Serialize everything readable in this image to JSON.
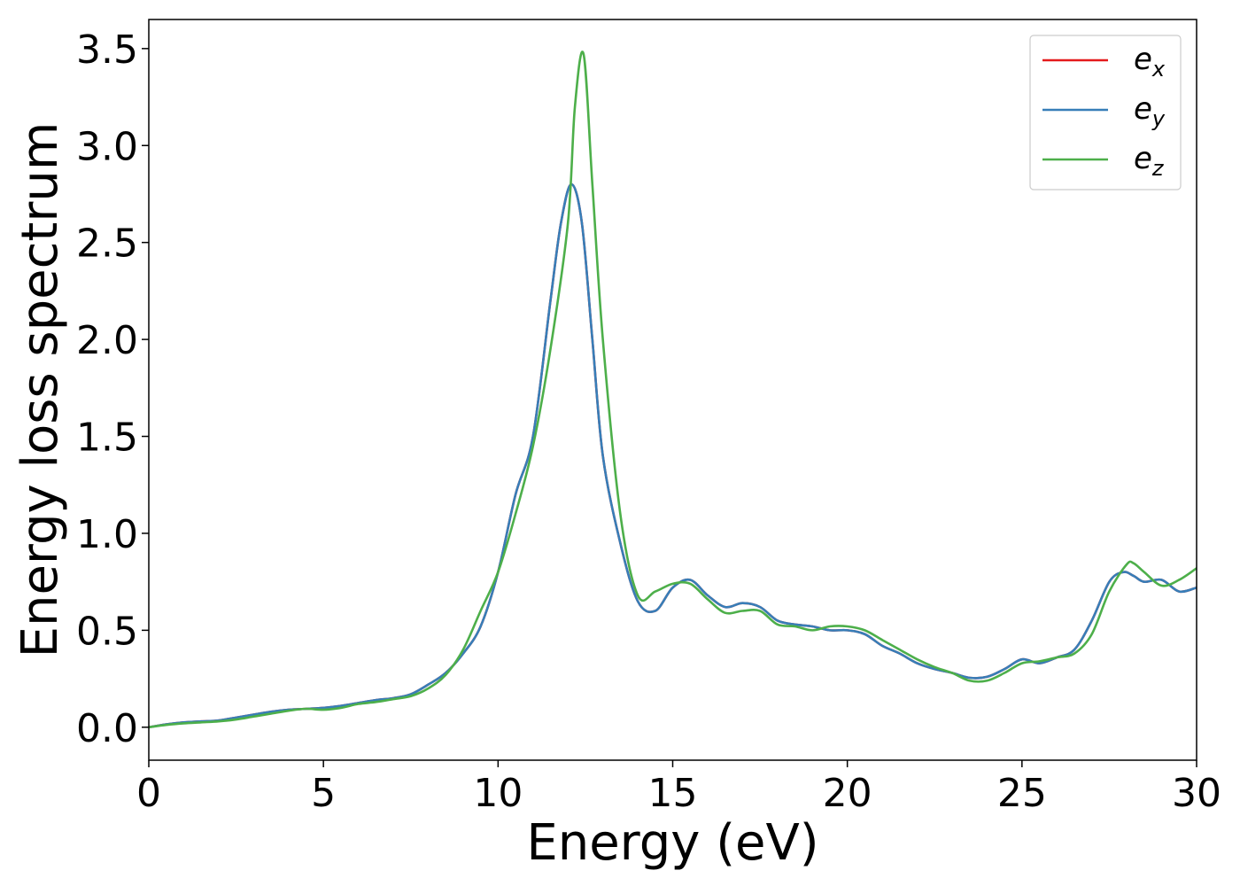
{
  "chart_data": {
    "type": "line",
    "title": "",
    "xlabel": "Energy (eV)",
    "ylabel": "Energy loss spectrum",
    "xlim": [
      0,
      30
    ],
    "ylim": [
      -0.17,
      3.65
    ],
    "xticks": [
      0,
      5,
      10,
      15,
      20,
      25,
      30
    ],
    "xtick_labels": [
      "0",
      "5",
      "10",
      "15",
      "20",
      "25",
      "30"
    ],
    "yticks": [
      0.0,
      0.5,
      1.0,
      1.5,
      2.0,
      2.5,
      3.0,
      3.5
    ],
    "ytick_labels": [
      "0.0",
      "0.5",
      "1.0",
      "1.5",
      "2.0",
      "2.5",
      "3.0",
      "3.5"
    ],
    "grid": false,
    "legend_position": "top-right",
    "series": [
      {
        "name": "e_x",
        "label_base": "e",
        "label_sub": "x",
        "color": "#e41a1c",
        "x": [
          0,
          0.5,
          1,
          1.5,
          2,
          2.5,
          3,
          3.5,
          4,
          4.5,
          5,
          5.5,
          6,
          6.5,
          7,
          7.5,
          8,
          8.5,
          9,
          9.5,
          10,
          10.5,
          11,
          11.5,
          11.8,
          12.1,
          12.4,
          12.7,
          13,
          13.5,
          14,
          14.5,
          15,
          15.5,
          16,
          16.5,
          17,
          17.5,
          18,
          18.5,
          19,
          19.5,
          20,
          20.5,
          21,
          21.5,
          22,
          22.5,
          23,
          23.5,
          24,
          24.5,
          25,
          25.5,
          26,
          26.5,
          27,
          27.5,
          27.9,
          28.2,
          28.5,
          29,
          29.5,
          30
        ],
        "y": [
          0.0,
          0.015,
          0.025,
          0.03,
          0.035,
          0.05,
          0.065,
          0.08,
          0.09,
          0.095,
          0.1,
          0.11,
          0.125,
          0.14,
          0.15,
          0.17,
          0.22,
          0.28,
          0.38,
          0.52,
          0.8,
          1.2,
          1.5,
          2.2,
          2.6,
          2.8,
          2.6,
          2.0,
          1.4,
          0.95,
          0.65,
          0.6,
          0.72,
          0.76,
          0.68,
          0.62,
          0.64,
          0.62,
          0.55,
          0.53,
          0.52,
          0.5,
          0.5,
          0.48,
          0.42,
          0.38,
          0.33,
          0.3,
          0.28,
          0.255,
          0.26,
          0.3,
          0.35,
          0.33,
          0.36,
          0.4,
          0.55,
          0.75,
          0.8,
          0.78,
          0.75,
          0.76,
          0.7,
          0.72
        ]
      },
      {
        "name": "e_y",
        "label_base": "e",
        "label_sub": "y",
        "color": "#377eb8",
        "x": [
          0,
          0.5,
          1,
          1.5,
          2,
          2.5,
          3,
          3.5,
          4,
          4.5,
          5,
          5.5,
          6,
          6.5,
          7,
          7.5,
          8,
          8.5,
          9,
          9.5,
          10,
          10.5,
          11,
          11.5,
          11.8,
          12.1,
          12.4,
          12.7,
          13,
          13.5,
          14,
          14.5,
          15,
          15.5,
          16,
          16.5,
          17,
          17.5,
          18,
          18.5,
          19,
          19.5,
          20,
          20.5,
          21,
          21.5,
          22,
          22.5,
          23,
          23.5,
          24,
          24.5,
          25,
          25.5,
          26,
          26.5,
          27,
          27.5,
          27.9,
          28.2,
          28.5,
          29,
          29.5,
          30
        ],
        "y": [
          0.0,
          0.015,
          0.025,
          0.03,
          0.035,
          0.05,
          0.065,
          0.08,
          0.09,
          0.095,
          0.1,
          0.11,
          0.125,
          0.14,
          0.15,
          0.17,
          0.22,
          0.28,
          0.38,
          0.52,
          0.8,
          1.2,
          1.5,
          2.2,
          2.6,
          2.8,
          2.6,
          2.0,
          1.4,
          0.95,
          0.65,
          0.6,
          0.72,
          0.76,
          0.68,
          0.62,
          0.64,
          0.62,
          0.55,
          0.53,
          0.52,
          0.5,
          0.5,
          0.48,
          0.42,
          0.38,
          0.33,
          0.3,
          0.28,
          0.255,
          0.26,
          0.3,
          0.35,
          0.33,
          0.36,
          0.4,
          0.55,
          0.75,
          0.8,
          0.78,
          0.75,
          0.76,
          0.7,
          0.72
        ]
      },
      {
        "name": "e_z",
        "label_base": "e",
        "label_sub": "z",
        "color": "#4daf4a",
        "x": [
          0,
          0.5,
          1,
          1.5,
          2,
          2.5,
          3,
          3.5,
          4,
          4.5,
          5,
          5.5,
          6,
          6.5,
          7,
          7.5,
          8,
          8.5,
          9,
          9.5,
          10,
          10.5,
          11,
          11.5,
          12,
          12.2,
          12.45,
          12.7,
          13,
          13.5,
          14,
          14.5,
          15,
          15.5,
          16,
          16.5,
          17,
          17.5,
          18,
          18.5,
          19,
          19.5,
          20,
          20.5,
          21,
          21.5,
          22,
          22.5,
          23,
          23.5,
          24,
          24.5,
          25,
          25.5,
          26,
          26.5,
          27,
          27.5,
          28,
          28.2,
          28.5,
          29,
          29.5,
          30
        ],
        "y": [
          0.0,
          0.012,
          0.02,
          0.025,
          0.03,
          0.04,
          0.055,
          0.07,
          0.085,
          0.095,
          0.09,
          0.1,
          0.12,
          0.13,
          0.145,
          0.16,
          0.2,
          0.27,
          0.4,
          0.6,
          0.8,
          1.1,
          1.45,
          1.95,
          2.6,
          3.2,
          3.47,
          2.8,
          2.0,
          1.1,
          0.68,
          0.7,
          0.74,
          0.74,
          0.66,
          0.59,
          0.6,
          0.6,
          0.53,
          0.52,
          0.5,
          0.52,
          0.52,
          0.5,
          0.45,
          0.4,
          0.35,
          0.31,
          0.28,
          0.24,
          0.24,
          0.28,
          0.33,
          0.34,
          0.36,
          0.38,
          0.48,
          0.7,
          0.84,
          0.845,
          0.8,
          0.73,
          0.76,
          0.82
        ]
      }
    ]
  }
}
